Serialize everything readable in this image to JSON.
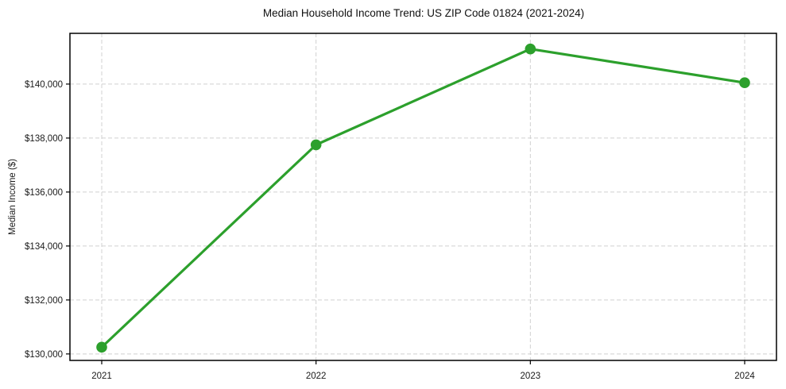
{
  "chart_data": {
    "type": "line",
    "title": "Median Household Income Trend: US ZIP Code 01824 (2021-2024)",
    "xlabel": "",
    "ylabel": "Median Income ($)",
    "categories": [
      "2021",
      "2022",
      "2023",
      "2024"
    ],
    "series": [
      {
        "name": "Median Household Income",
        "values": [
          130250,
          137750,
          141300,
          140050
        ]
      }
    ],
    "ylim": [
      129760,
      141880
    ],
    "yticks": [
      130000,
      132000,
      134000,
      136000,
      138000,
      140000
    ],
    "ytick_labels": [
      "$130,000",
      "$132,000",
      "$134,000",
      "$136,000",
      "$138,000",
      "$140,000"
    ],
    "grid": "dashed-both-axes",
    "legend": "none",
    "colors": {
      "line": "#2ca02c",
      "marker": "#2ca02c",
      "grid": "#d0d0d0",
      "spine": "#000000",
      "text": "#1a1a1a",
      "background": "#ffffff"
    }
  }
}
